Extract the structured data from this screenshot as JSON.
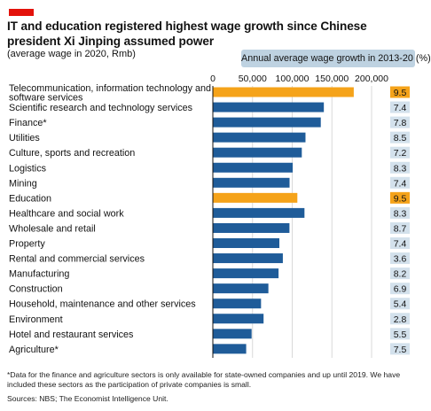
{
  "title": "IT and education registered highest wage growth since Chinese president Xi Jinping assumed power",
  "subtitle": "(average wage in 2020, Rmb)",
  "growth_header": "Annual average wage growth in 2013-20 (%)",
  "footnote": "*Data for the finance and agriculture sectors is only available for state-owned companies and up until 2019. We have included these sectors as the participation of private companies is small.",
  "source": "Sources: NBS; The Economist Intelligence Unit.",
  "colors": {
    "accent_red": "#e3120b",
    "bar_default": "#1f5c99",
    "bar_highlight": "#f5a31a",
    "growth_box": "#d3e1ec",
    "growth_box_highlight": "#f5a31a"
  },
  "chart_data": {
    "type": "bar",
    "orientation": "horizontal",
    "ylabel": "",
    "xlim": [
      0,
      200000
    ],
    "xticks": [
      0,
      50000,
      100000,
      150000,
      200000
    ],
    "xtick_labels": [
      "0",
      "50,000",
      "100,000",
      "150,000",
      "200,000"
    ],
    "categories": [
      "Telecommunication, information technology and software services",
      "Scientific research and technology services",
      "Finance*",
      "Utilities",
      "Culture, sports and recreation",
      "Logistics",
      "Mining",
      "Education",
      "Healthcare and social work",
      "Wholesale and retail",
      "Property",
      "Rental and commercial services",
      "Manufacturing",
      "Construction",
      "Household, maintenance and other services",
      "Environment",
      "Hotel and restaurant services",
      "Agriculture*"
    ],
    "category_label_lines": [
      [
        "Telecommunication, information technology and",
        "software services"
      ],
      [
        "Scientific research and technology services"
      ],
      [
        "Finance*"
      ],
      [
        "Utilities"
      ],
      [
        "Culture, sports and recreation"
      ],
      [
        "Logistics"
      ],
      [
        "Mining"
      ],
      [
        "Education"
      ],
      [
        "Healthcare and social work"
      ],
      [
        "Wholesale and retail"
      ],
      [
        "Property"
      ],
      [
        "Rental and commercial services"
      ],
      [
        "Manufacturing"
      ],
      [
        "Construction"
      ],
      [
        "Household, maintenance and other services"
      ],
      [
        "Environment"
      ],
      [
        "Hotel and restaurant services"
      ],
      [
        "Agriculture*"
      ]
    ],
    "values": [
      177544,
      139851,
      136000,
      116728,
      112081,
      100642,
      96674,
      106474,
      115449,
      96521,
      83807,
      88190,
      82783,
      69986,
      60722,
      63914,
      48833,
      42000
    ],
    "growth": [
      "9.5",
      "7.4",
      "7.8",
      "8.5",
      "7.2",
      "8.3",
      "7.4",
      "9.5",
      "8.3",
      "8.7",
      "7.4",
      "3.6",
      "8.2",
      "6.9",
      "5.4",
      "2.8",
      "5.5",
      "7.5"
    ],
    "highlighted": [
      0,
      7
    ]
  }
}
